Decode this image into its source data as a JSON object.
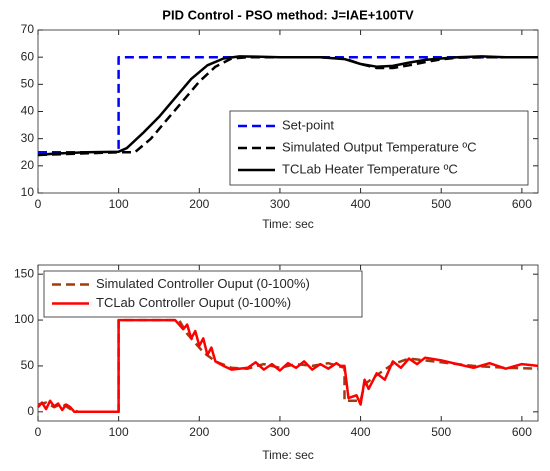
{
  "chart_data": [
    {
      "type": "line",
      "title": "PID Control - PSO method: J=IAE+100TV",
      "xlabel": "Time: sec",
      "xlim": [
        0,
        620
      ],
      "xticks": [
        0,
        100,
        200,
        300,
        400,
        500,
        600
      ],
      "ylim": [
        10,
        70
      ],
      "yticks": [
        10,
        20,
        30,
        40,
        50,
        60,
        70
      ],
      "grid": false,
      "legend": "lower right",
      "series": [
        {
          "name": "Set-point",
          "color": "#0000ff",
          "dashed": true,
          "x": [
            0,
            100,
            100,
            620
          ],
          "values": [
            25,
            25,
            60,
            60
          ]
        },
        {
          "name": "Simulated Output Temperature ºC",
          "color": "#000000",
          "dashed": true,
          "x": [
            0,
            50,
            100,
            120,
            140,
            160,
            180,
            200,
            220,
            240,
            260,
            300,
            350,
            380,
            400,
            420,
            440,
            460,
            480,
            500,
            520,
            560,
            620
          ],
          "values": [
            24,
            24.5,
            25,
            25,
            30,
            37,
            44,
            51,
            56.5,
            59.5,
            60,
            60,
            60,
            59.5,
            57.5,
            56,
            56,
            57,
            58.2,
            59.2,
            59.8,
            60,
            60
          ]
        },
        {
          "name": "TCLab Heater Temperature ºC",
          "color": "#000000",
          "dashed": false,
          "x": [
            0,
            20,
            60,
            100,
            110,
            130,
            150,
            170,
            190,
            210,
            230,
            250,
            270,
            300,
            350,
            380,
            400,
            420,
            440,
            460,
            480,
            500,
            520,
            550,
            580,
            620
          ],
          "values": [
            24,
            24.5,
            25,
            25.2,
            26.5,
            32,
            38,
            45,
            52,
            57,
            59.5,
            60.3,
            60.2,
            60,
            60,
            59.3,
            57.5,
            56.5,
            56.8,
            58,
            59,
            59.5,
            60,
            60.3,
            60,
            60
          ]
        }
      ]
    },
    {
      "type": "line",
      "xlabel": "Time: sec",
      "xlim": [
        0,
        620
      ],
      "xticks": [
        0,
        100,
        200,
        300,
        400,
        500,
        600
      ],
      "ylim": [
        -10,
        160
      ],
      "yticks": [
        0,
        50,
        100,
        150
      ],
      "grid": false,
      "legend": "upper left",
      "series": [
        {
          "name": "Simulated Controller Ouput (0-100%)",
          "color": "#a03c14",
          "dashed": true,
          "x": [
            0,
            10,
            20,
            30,
            40,
            50,
            100,
            100,
            175,
            185,
            195,
            205,
            220,
            240,
            260,
            280,
            300,
            320,
            340,
            360,
            380,
            380,
            400,
            405,
            420,
            440,
            460,
            480,
            500,
            540,
            580,
            620
          ],
          "values": [
            8,
            10,
            5,
            9,
            3,
            0,
            0,
            100,
            100,
            85,
            75,
            65,
            55,
            48,
            47,
            52,
            48,
            52,
            50,
            53,
            48,
            12,
            12,
            30,
            40,
            52,
            58,
            56,
            54,
            50,
            48,
            47
          ]
        },
        {
          "name": "TCLab Controller Ouput (0-100%)",
          "color": "#ff0000",
          "dashed": false,
          "x": [
            0,
            5,
            10,
            15,
            20,
            25,
            30,
            35,
            40,
            45,
            100,
            100,
            170,
            180,
            185,
            190,
            195,
            200,
            205,
            210,
            215,
            220,
            230,
            240,
            260,
            270,
            280,
            290,
            300,
            310,
            320,
            330,
            340,
            350,
            360,
            370,
            375,
            380,
            385,
            395,
            400,
            405,
            410,
            420,
            430,
            440,
            450,
            460,
            470,
            480,
            500,
            520,
            540,
            560,
            580,
            600,
            620
          ],
          "values": [
            5,
            10,
            3,
            12,
            6,
            9,
            2,
            8,
            5,
            0,
            0,
            100,
            100,
            90,
            95,
            80,
            88,
            72,
            80,
            62,
            70,
            55,
            50,
            46,
            48,
            54,
            46,
            52,
            45,
            53,
            48,
            55,
            46,
            52,
            47,
            53,
            50,
            50,
            15,
            18,
            8,
            35,
            25,
            42,
            35,
            55,
            48,
            58,
            52,
            59,
            56,
            52,
            48,
            53,
            47,
            52,
            50
          ]
        }
      ]
    }
  ]
}
